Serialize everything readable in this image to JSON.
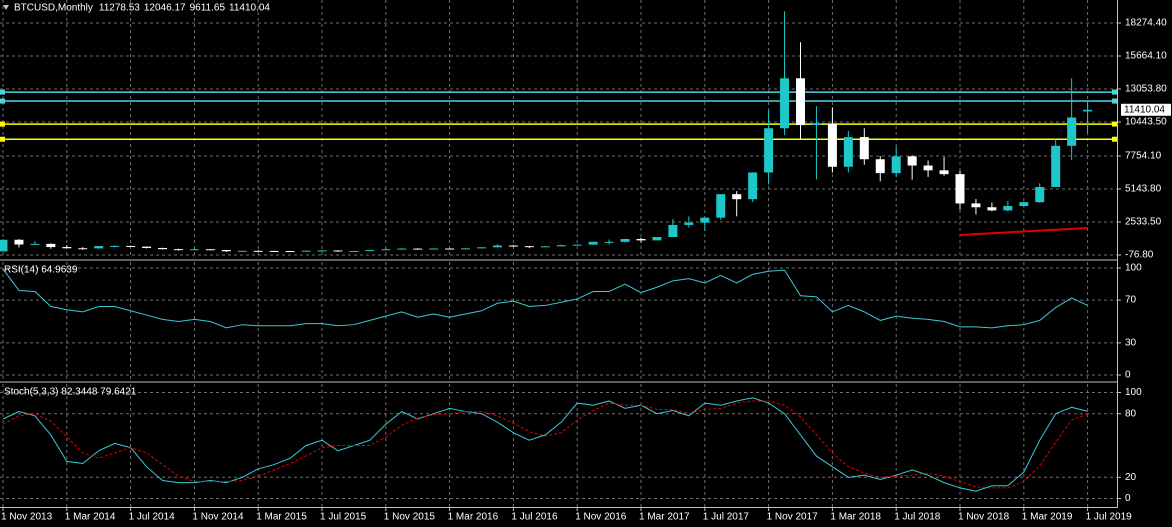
{
  "chart_data": [
    {
      "type": "candlestick",
      "title": "BTCUSD,Monthly",
      "categories": [
        "1 Nov 2013",
        null,
        null,
        null,
        "1 Mar 2014",
        null,
        null,
        null,
        "1 Jul 2014",
        null,
        null,
        null,
        "1 Nov 2014",
        null,
        null,
        null,
        "1 Mar 2015",
        null,
        null,
        null,
        "1 Jul 2015",
        null,
        null,
        null,
        "1 Nov 2015",
        null,
        null,
        null,
        "1 Mar 2016",
        null,
        null,
        null,
        "1 Jul 2016",
        null,
        null,
        null,
        "1 Nov 2016",
        null,
        null,
        null,
        "1 Mar 2017",
        null,
        null,
        null,
        "1 Jul 2017",
        null,
        null,
        null,
        "1 Nov 2017",
        null,
        null,
        null,
        "1 Mar 2018",
        null,
        null,
        null,
        "1 Jul 2018",
        null,
        null,
        null,
        "1 Nov 2018",
        null,
        null,
        null,
        "1 Mar 2019",
        null,
        null,
        null,
        "1 Jul 2019"
      ],
      "open": [
        206,
        1129,
        754,
        803,
        550,
        457,
        447,
        627,
        640,
        585,
        479,
        386,
        338,
        378,
        320,
        218,
        254,
        244,
        236,
        230,
        263,
        284,
        230,
        236,
        311,
        377,
        430,
        368,
        437,
        416,
        448,
        531,
        673,
        624,
        573,
        609,
        698,
        742,
        963,
        965,
        1189,
        1079,
        1347,
        2300,
        2480,
        2875,
        4735,
        4338,
        6450,
        9950,
        13900,
        10200,
        10300,
        6900,
        9250,
        7500,
        6400,
        7730,
        7000,
        6620,
        6320,
        4000,
        3700,
        3450,
        3800,
        4100,
        5300,
        8560,
        11278.53
      ],
      "high": [
        1163,
        1175,
        1020,
        836,
        700,
        547,
        630,
        679,
        650,
        600,
        500,
        420,
        460,
        380,
        320,
        265,
        300,
        261,
        247,
        268,
        317,
        285,
        244,
        334,
        502,
        467,
        462,
        449,
        440,
        467,
        550,
        780,
        704,
        626,
        630,
        740,
        753,
        980,
        1150,
        1205,
        1290,
        1350,
        2760,
        2980,
        2920,
        4740,
        4980,
        6470,
        11400,
        19200,
        16750,
        11700,
        11600,
        9750,
        9950,
        7750,
        8500,
        7800,
        7400,
        7680,
        6580,
        4350,
        4070,
        4200,
        4150,
        5600,
        9100,
        13900,
        12046.17
      ],
      "low": [
        200,
        520,
        740,
        420,
        450,
        340,
        420,
        540,
        570,
        440,
        360,
        275,
        320,
        300,
        165,
        210,
        240,
        215,
        228,
        220,
        253,
        162,
        225,
        236,
        310,
        350,
        350,
        366,
        405,
        413,
        436,
        522,
        570,
        465,
        570,
        605,
        680,
        742,
        750,
        920,
        890,
        1075,
        1345,
        2100,
        1830,
        2700,
        2980,
        4110,
        5500,
        9400,
        9100,
        5900,
        6450,
        6450,
        7060,
        5750,
        6100,
        5880,
        6100,
        6200,
        3500,
        3130,
        3380,
        3380,
        3700,
        4050,
        5300,
        7450,
        9611.65
      ],
      "close": [
        1129,
        754,
        803,
        550,
        457,
        447,
        627,
        640,
        585,
        479,
        386,
        338,
        378,
        320,
        218,
        254,
        244,
        236,
        230,
        263,
        284,
        230,
        236,
        311,
        377,
        430,
        368,
        437,
        416,
        448,
        531,
        673,
        624,
        573,
        609,
        698,
        742,
        963,
        965,
        1189,
        1079,
        1347,
        2300,
        2480,
        2875,
        4735,
        4338,
        6450,
        9950,
        13900,
        10200,
        10300,
        6900,
        9250,
        7500,
        6400,
        7730,
        7000,
        6620,
        6320,
        4000,
        3700,
        3450,
        3800,
        4100,
        5300,
        8560,
        10800,
        11410.04
      ],
      "up_color": "#1ec8c8",
      "down_color": "#ffffff",
      "ylim": [
        -314,
        20094
      ],
      "yticks": [
        {
          "value": -76.8,
          "label": "-76.80"
        },
        {
          "value": 2533.5,
          "label": "2533.50"
        },
        {
          "value": 5143.8,
          "label": "5143.80"
        },
        {
          "value": 7754.1,
          "label": "7754.10"
        },
        {
          "value": 10443.5,
          "label": "10443.50"
        },
        {
          "value": 13053.8,
          "label": "13053.80"
        },
        {
          "value": 15664.1,
          "label": "15664.10"
        },
        {
          "value": 18274.4,
          "label": "18274.40"
        }
      ],
      "grid": true,
      "hlines": [
        {
          "value": 12810,
          "color": "#4fd4e4"
        },
        {
          "value": 12100,
          "color": "#4fd4e4"
        },
        {
          "value": 10280,
          "color": "#ffff00"
        },
        {
          "value": 9080,
          "color": "#ffff00"
        }
      ],
      "trendline": {
        "x": [
          "1 Nov 2018",
          "1 Jul 2019"
        ],
        "values": [
          1505,
          2058
        ],
        "color": "#e00000"
      }
    },
    {
      "type": "line",
      "title": "RSI(14) 64.9639",
      "series": [
        {
          "color": "#3cc8d8",
          "values": [
            99,
            79,
            78,
            64,
            61,
            59,
            64,
            64,
            60,
            56,
            52,
            50,
            52,
            50,
            44,
            47,
            46,
            46,
            46,
            48,
            48,
            46,
            47,
            51,
            55,
            59,
            54,
            57,
            54,
            57,
            60,
            67,
            69,
            64,
            65,
            68,
            71,
            78,
            78,
            85,
            77,
            82,
            88,
            90,
            86,
            93,
            86,
            94,
            97,
            98,
            74,
            73,
            59,
            65,
            59,
            51,
            55,
            53,
            52,
            50,
            45,
            45,
            44,
            46,
            47,
            51,
            63,
            72,
            64.9639
          ]
        }
      ],
      "ylim": [
        -4.7,
        105.6
      ],
      "yticks": [
        0,
        30,
        70,
        100
      ],
      "grid": true
    },
    {
      "type": "line",
      "title": "Stoch(5,3,3) 82.3448 79.6421",
      "series": [
        {
          "color": "#3cc8d8",
          "values": [
            75,
            82,
            78,
            60,
            35,
            33,
            45,
            52,
            48,
            30,
            17,
            15,
            15,
            17,
            15,
            20,
            28,
            32,
            38,
            50,
            55,
            45,
            50,
            55,
            70,
            82,
            75,
            80,
            85,
            82,
            80,
            72,
            62,
            55,
            60,
            72,
            90,
            88,
            92,
            85,
            88,
            80,
            83,
            78,
            90,
            88,
            92,
            95,
            90,
            80,
            60,
            40,
            30,
            20,
            22,
            18,
            22,
            27,
            22,
            15,
            10,
            7,
            12,
            12,
            25,
            55,
            80,
            86,
            82.3448
          ]
        },
        {
          "color": "#e00000",
          "dashed": true,
          "values": [
            70,
            78,
            80,
            73,
            58,
            43,
            38,
            43,
            48,
            43,
            32,
            21,
            16,
            16,
            16,
            17,
            21,
            27,
            33,
            40,
            48,
            50,
            50,
            50,
            58,
            69,
            76,
            79,
            80,
            82,
            82,
            78,
            71,
            63,
            59,
            62,
            74,
            83,
            90,
            88,
            88,
            84,
            84,
            80,
            84,
            85,
            90,
            92,
            92,
            88,
            77,
            60,
            43,
            30,
            24,
            20,
            21,
            22,
            24,
            21,
            16,
            11,
            10,
            10,
            16,
            31,
            53,
            74,
            79.6421
          ]
        }
      ],
      "ylim": [
        -8,
        108
      ],
      "yticks": [
        0,
        20,
        80,
        100
      ],
      "grid": true
    }
  ]
}
